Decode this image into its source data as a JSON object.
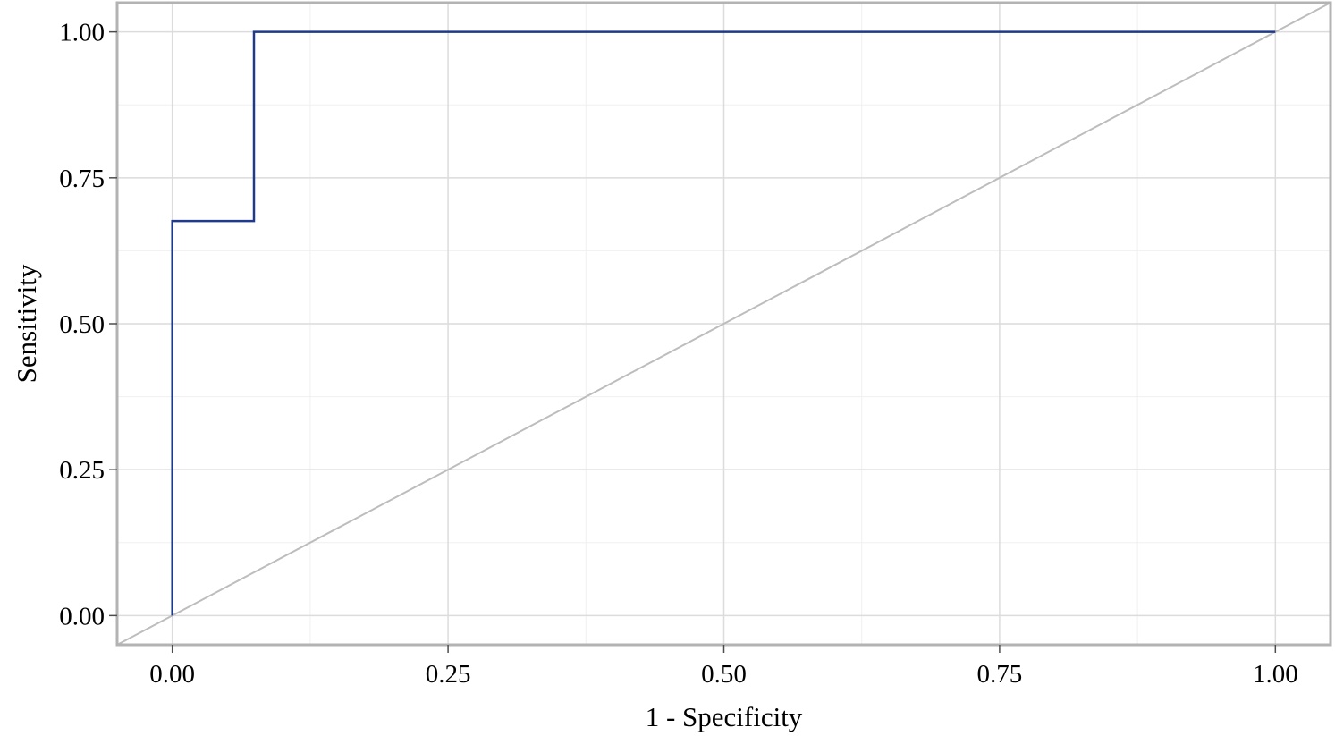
{
  "chart_data": {
    "type": "line",
    "title": "",
    "xlabel": "1 - Specificity",
    "ylabel": "Sensitivity",
    "xlim": [
      -0.05,
      1.05
    ],
    "ylim": [
      -0.05,
      1.05
    ],
    "x_ticks": [
      "0.00",
      "0.25",
      "0.50",
      "0.75",
      "1.00"
    ],
    "y_ticks": [
      "0.00",
      "0.25",
      "0.50",
      "0.75",
      "1.00"
    ],
    "grid": true,
    "legend": "none",
    "series": [
      {
        "style": "step",
        "color": "#1f3a8a",
        "x": [
          0.0,
          0.0,
          0.074,
          0.074,
          1.0
        ],
        "y": [
          0.0,
          0.676,
          0.676,
          1.0,
          1.0
        ]
      },
      {
        "style": "reference-diagonal",
        "color": "#bdbdbd",
        "x": [
          -0.05,
          1.05
        ],
        "y": [
          -0.05,
          1.05
        ]
      }
    ]
  }
}
